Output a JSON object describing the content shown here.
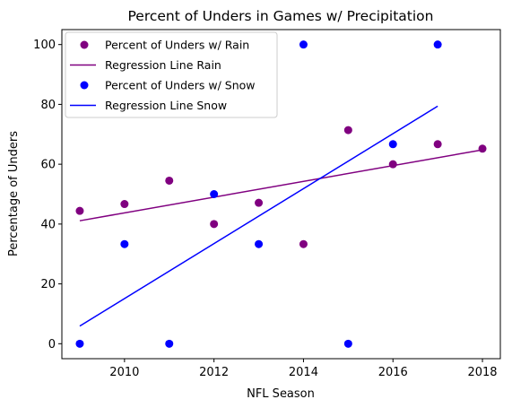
{
  "chart_data": {
    "type": "scatter",
    "title": "Percent of Unders in Games w/ Precipitation",
    "xlabel": "NFL Season",
    "ylabel": "Percentage of Unders",
    "xlim": [
      2008.6,
      2018.4
    ],
    "ylim": [
      -5,
      105
    ],
    "xticks": [
      2010,
      2012,
      2014,
      2016,
      2018
    ],
    "yticks": [
      0,
      20,
      40,
      60,
      80,
      100
    ],
    "grid": false,
    "legend_position": "top-left",
    "series": [
      {
        "name": "Percent of Unders w/ Rain",
        "kind": "scatter",
        "color": "#800080",
        "points": [
          [
            2009,
            44.4
          ],
          [
            2010,
            46.7
          ],
          [
            2011,
            54.5
          ],
          [
            2012,
            40.0
          ],
          [
            2013,
            47.1
          ],
          [
            2014,
            33.3
          ],
          [
            2015,
            71.4
          ],
          [
            2016,
            60.0
          ],
          [
            2017,
            66.7
          ],
          [
            2018,
            65.2
          ]
        ]
      },
      {
        "name": "Regression Line Rain",
        "kind": "line",
        "color": "#800080",
        "points": [
          [
            2009,
            41.1
          ],
          [
            2018,
            64.8
          ]
        ]
      },
      {
        "name": "Percent of Unders w/ Snow",
        "kind": "scatter",
        "color": "#0000ff",
        "points": [
          [
            2009,
            0
          ],
          [
            2010,
            33.3
          ],
          [
            2011,
            0
          ],
          [
            2012,
            50.0
          ],
          [
            2013,
            33.3
          ],
          [
            2014,
            100
          ],
          [
            2015,
            0
          ],
          [
            2016,
            66.7
          ],
          [
            2017,
            100
          ]
        ]
      },
      {
        "name": "Regression Line Snow",
        "kind": "line",
        "color": "#0000ff",
        "points": [
          [
            2009,
            5.9
          ],
          [
            2017,
            79.4
          ]
        ]
      }
    ]
  }
}
